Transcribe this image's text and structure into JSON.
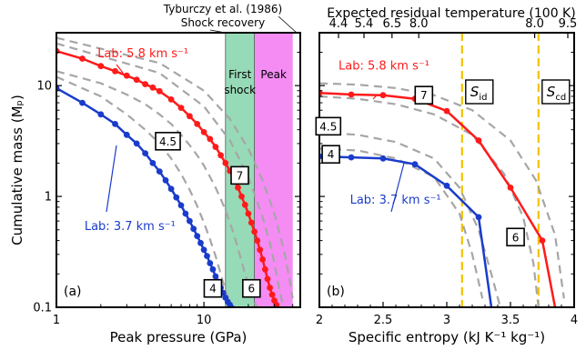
{
  "chart_data": [
    {
      "panel_label": "(a)",
      "type": "line",
      "xscale": "log",
      "yscale": "log",
      "xlim": [
        1,
        45
      ],
      "ylim": [
        0.1,
        30
      ],
      "xlabel": "Peak pressure (GPa)",
      "ylabel": "Cumulative mass (Mₚ)",
      "xticks": [
        {
          "value": 1,
          "label": "1"
        },
        {
          "value": 10,
          "label": "10"
        }
      ],
      "yticks": [
        {
          "value": 0.1,
          "label": "0.1"
        },
        {
          "value": 1,
          "label": "1"
        },
        {
          "value": 10,
          "label": "10"
        }
      ],
      "top_annotation": [
        "Tyburczy et al. (1986)",
        "Shock recovery"
      ],
      "bands": [
        {
          "name": "first-shock",
          "label": [
            "First",
            "shock"
          ],
          "x": [
            14,
            22
          ],
          "color": "#2fb56f",
          "opacity": 0.5
        },
        {
          "name": "peak",
          "label": [
            "Peak"
          ],
          "x": [
            22,
            40
          ],
          "color": "#e600e6",
          "opacity": 0.45
        }
      ],
      "series": [
        {
          "name": "Lab: 5.8 km s⁻¹",
          "color": "#ff1a1a",
          "x": [
            1,
            1.5,
            2,
            2.5,
            3,
            3.5,
            4,
            4.5,
            5,
            6,
            7,
            8,
            9,
            10,
            11,
            12,
            13,
            14,
            15,
            16,
            17,
            18,
            19,
            20,
            21,
            22,
            23,
            24,
            25,
            26,
            27,
            28,
            29,
            30,
            31,
            32
          ],
          "y": [
            20.5,
            17.5,
            15,
            13.5,
            12.3,
            11.3,
            10.3,
            9.6,
            8.9,
            7.5,
            6.3,
            5.3,
            4.5,
            3.8,
            3.3,
            2.8,
            2.35,
            2,
            1.7,
            1.43,
            1.2,
            1.0,
            0.84,
            0.7,
            0.58,
            0.48,
            0.4,
            0.33,
            0.27,
            0.22,
            0.18,
            0.15,
            0.13,
            0.115,
            0.105,
            0.1
          ]
        },
        {
          "name": "Lab: 3.7 km s⁻¹",
          "color": "#1a3ccc",
          "x": [
            1,
            1.5,
            2,
            2.5,
            3,
            3.5,
            4,
            4.5,
            5,
            5.5,
            6,
            6.5,
            7,
            7.5,
            8,
            8.5,
            9,
            9.5,
            10,
            10.5,
            11,
            11.5,
            12,
            12.5,
            13,
            13.5,
            14,
            14.5,
            15,
            16,
            17
          ],
          "y": [
            9.5,
            7.0,
            5.5,
            4.5,
            3.6,
            3.0,
            2.45,
            2.0,
            1.68,
            1.4,
            1.17,
            0.98,
            0.83,
            0.7,
            0.6,
            0.51,
            0.44,
            0.38,
            0.33,
            0.29,
            0.25,
            0.22,
            0.19,
            0.17,
            0.15,
            0.135,
            0.122,
            0.112,
            0.105,
            0.1,
            0.095
          ]
        }
      ],
      "reference_curves": [
        {
          "label": "4.5",
          "color": "#a6a6a6",
          "x": [
            1,
            2,
            3,
            4,
            5,
            6,
            7,
            8,
            9,
            10,
            11,
            12,
            13,
            14,
            15,
            16,
            17,
            18,
            19,
            20,
            21,
            22,
            23
          ],
          "y": [
            13.5,
            10.5,
            8.3,
            6.8,
            5.5,
            4.5,
            3.6,
            2.9,
            2.35,
            1.9,
            1.5,
            1.2,
            0.95,
            0.75,
            0.58,
            0.45,
            0.34,
            0.26,
            0.2,
            0.16,
            0.13,
            0.11,
            0.1
          ]
        },
        {
          "label": "4",
          "color": "#a6a6a6",
          "x": [
            1,
            2,
            3,
            4,
            5,
            6,
            7,
            8,
            9,
            10,
            11,
            12,
            13,
            14,
            15,
            16
          ],
          "y": [
            12,
            8.0,
            5.5,
            4.0,
            3.0,
            2.2,
            1.6,
            1.15,
            0.82,
            0.58,
            0.41,
            0.29,
            0.2,
            0.14,
            0.11,
            0.1
          ]
        },
        {
          "label": "6",
          "color": "#a6a6a6",
          "x": [
            1,
            5,
            10,
            15,
            20,
            25,
            28,
            30,
            32,
            34
          ],
          "y": [
            24,
            13,
            6.5,
            3.2,
            1.5,
            0.65,
            0.38,
            0.25,
            0.16,
            0.11
          ]
        },
        {
          "label": "7",
          "color": "#a6a6a6",
          "x": [
            1,
            5,
            10,
            15,
            20,
            25,
            30,
            35,
            38,
            40
          ],
          "y": [
            27,
            16,
            9,
            5,
            2.7,
            1.4,
            0.7,
            0.32,
            0.18,
            0.12
          ]
        }
      ],
      "annotations": [
        {
          "text": "Lab: 5.8 km s⁻¹",
          "color": "#ff1a1a",
          "x": 1.9,
          "y": 18
        },
        {
          "text": "Lab: 3.7 km s⁻¹",
          "color": "#1a3ccc",
          "x": 1.55,
          "y": 0.5
        },
        {
          "text": "4.5",
          "boxed": true,
          "x": 5.7,
          "y": 3.15
        },
        {
          "text": "7",
          "boxed": true,
          "x": 17.5,
          "y": 1.55
        },
        {
          "text": "4",
          "boxed": true,
          "x": 11.5,
          "y": 0.148
        },
        {
          "text": "6",
          "boxed": true,
          "x": 21,
          "y": 0.148
        }
      ]
    },
    {
      "panel_label": "(b)",
      "type": "line",
      "xscale": "linear",
      "yscale": "log",
      "xlim": [
        2,
        4
      ],
      "ylim": [
        0.1,
        30
      ],
      "xlabel": "Specific entropy (kJ K⁻¹ kg⁻¹)",
      "xticks": [
        {
          "value": 2,
          "label": "2"
        },
        {
          "value": 2.5,
          "label": "2.5"
        },
        {
          "value": 3,
          "label": "3"
        },
        {
          "value": 3.5,
          "label": "3.5"
        },
        {
          "value": 4,
          "label": "4"
        }
      ],
      "top_axis_label": "Expected residual temperature (100 K)",
      "top_ticks": [
        {
          "value": 2.15,
          "label": "4.4"
        },
        {
          "value": 2.35,
          "label": "5.4"
        },
        {
          "value": 2.57,
          "label": "6.5"
        },
        {
          "value": 2.78,
          "label": "8.0"
        },
        {
          "value": 3.69,
          "label": "8.0"
        },
        {
          "value": 3.95,
          "label": "9.5"
        }
      ],
      "vlines": [
        {
          "label": "S",
          "sub": "id",
          "x": 3.12,
          "color": "#f2c200"
        },
        {
          "label": "S",
          "sub": "cd",
          "x": 3.72,
          "color": "#f2c200"
        }
      ],
      "series": [
        {
          "name": "Lab: 5.8 km s⁻¹",
          "color": "#ff1a1a",
          "x": [
            2.0,
            2.25,
            2.5,
            2.75,
            3.0,
            3.25,
            3.5,
            3.75,
            3.85
          ],
          "y": [
            8.6,
            8.3,
            8.2,
            7.6,
            5.9,
            3.2,
            1.2,
            0.4,
            0.1
          ]
        },
        {
          "name": "Lab: 3.7 km s⁻¹",
          "color": "#1a3ccc",
          "x": [
            2.0,
            2.25,
            2.5,
            2.75,
            3.0,
            3.25,
            3.35
          ],
          "y": [
            2.3,
            2.25,
            2.2,
            1.95,
            1.25,
            0.65,
            0.1
          ]
        }
      ],
      "reference_curves": [
        {
          "label": "7",
          "color": "#a6a6a6",
          "x": [
            2.0,
            2.3,
            2.6,
            2.9,
            3.2,
            3.5,
            3.7,
            3.85,
            3.92
          ],
          "y": [
            10.5,
            10.2,
            9.5,
            8.2,
            6.0,
            3.2,
            1.4,
            0.45,
            0.12
          ]
        },
        {
          "label": "6",
          "color": "#a6a6a6",
          "x": [
            2.0,
            2.3,
            2.6,
            2.9,
            3.2,
            3.45,
            3.6,
            3.68,
            3.72
          ],
          "y": [
            8.0,
            7.6,
            6.8,
            5.5,
            3.6,
            1.6,
            0.65,
            0.25,
            0.1
          ]
        },
        {
          "label": "4.5",
          "color": "#a6a6a6",
          "x": [
            2.0,
            2.3,
            2.6,
            2.9,
            3.1,
            3.25,
            3.35,
            3.42
          ],
          "y": [
            3.8,
            3.6,
            3.1,
            2.2,
            1.2,
            0.5,
            0.2,
            0.1
          ]
        },
        {
          "label": "4",
          "color": "#a6a6a6",
          "x": [
            2.0,
            2.3,
            2.6,
            2.9,
            3.1,
            3.2,
            3.28
          ],
          "y": [
            2.7,
            2.6,
            2.2,
            1.5,
            0.7,
            0.3,
            0.12
          ]
        }
      ],
      "annotations": [
        {
          "text": "Lab: 5.8 km s⁻¹",
          "color": "#ff1a1a",
          "x": 2.15,
          "y": 14
        },
        {
          "text": "Lab: 3.7 km s⁻¹",
          "color": "#1a3ccc",
          "x": 2.24,
          "y": 0.86
        },
        {
          "text": "7",
          "boxed": true,
          "x": 2.82,
          "y": 8.2
        },
        {
          "text": "4.5",
          "boxed": true,
          "x": 2.07,
          "y": 4.3
        },
        {
          "text": "4",
          "boxed": true,
          "x": 2.09,
          "y": 2.4
        },
        {
          "text": "6",
          "boxed": true,
          "x": 3.54,
          "y": 0.43
        }
      ]
    }
  ]
}
